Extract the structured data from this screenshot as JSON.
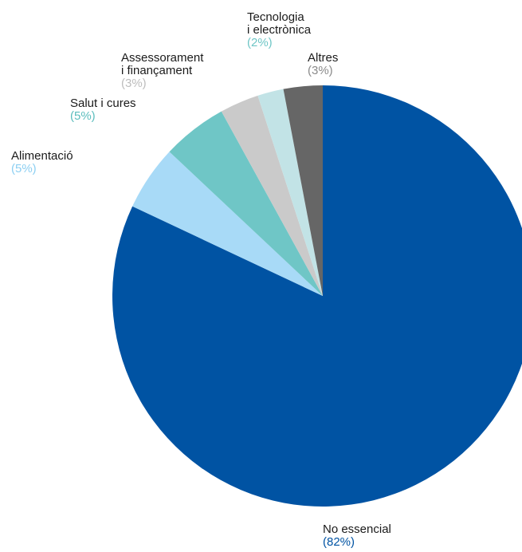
{
  "chart_data": {
    "type": "pie",
    "title": "",
    "slices": [
      {
        "label_lines": [
          "No essencial"
        ],
        "value": 82,
        "value_label": "(82%)",
        "color": "#0053A3",
        "label_color": "#0053A3"
      },
      {
        "label_lines": [
          "Alimentació"
        ],
        "value": 5,
        "value_label": "(5%)",
        "color": "#A8DAF7",
        "label_color": "#8CCFF2"
      },
      {
        "label_lines": [
          "Salut i cures"
        ],
        "value": 5,
        "value_label": "(5%)",
        "color": "#6FC6C6",
        "label_color": "#5BBDBD"
      },
      {
        "label_lines": [
          "Assessorament",
          "i finançament"
        ],
        "value": 3,
        "value_label": "(3%)",
        "color": "#CACACA",
        "label_color": "#BDBDBD"
      },
      {
        "label_lines": [
          "Tecnologia",
          "i electrònica"
        ],
        "value": 2,
        "value_label": "(2%)",
        "color": "#C2E3E6",
        "label_color": "#6FC6C6"
      },
      {
        "label_lines": [
          "Altres"
        ],
        "value": 3,
        "value_label": "(3%)",
        "color": "#666666",
        "label_color": "#8A8A8A"
      }
    ],
    "start_angle_deg": 0,
    "direction": "clockwise",
    "legend": "none"
  }
}
